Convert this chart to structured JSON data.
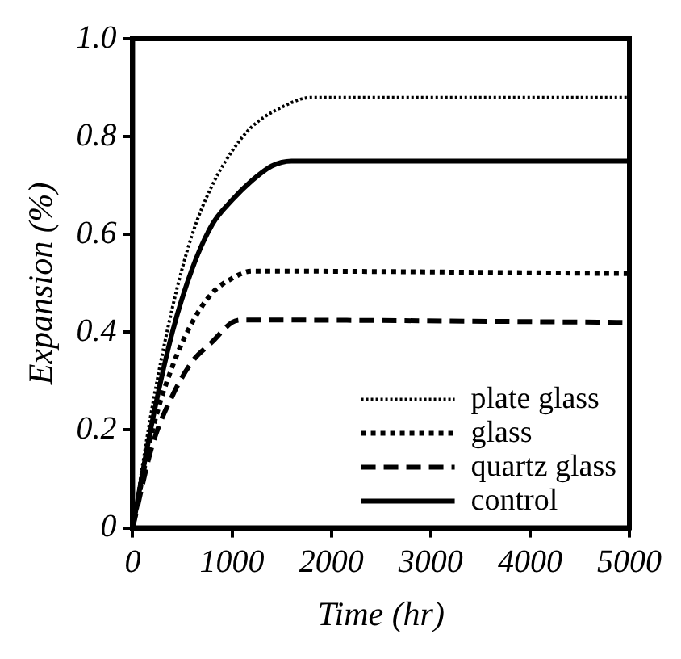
{
  "chart_data": {
    "type": "line",
    "xlabel": "Time (hr)",
    "ylabel": "Expansion (%)",
    "xlim": [
      0,
      5000
    ],
    "xticks": [
      0,
      1000,
      2000,
      3000,
      4000,
      5000
    ],
    "ylim": [
      0,
      1.0
    ],
    "yticks": [
      0,
      0.2,
      0.4,
      0.6,
      0.8,
      {
        "value": 1.0,
        "label": "1.0"
      }
    ],
    "grid": false,
    "legend": "bottom right",
    "marker": "none",
    "series": [
      {
        "name": "plate glass",
        "color": "#000000",
        "line_style": "dotted",
        "x": [
          0,
          200,
          400,
          600,
          800,
          1000,
          1200,
          1500,
          1800,
          5000
        ],
        "values": [
          0,
          0.25,
          0.45,
          0.6,
          0.7,
          0.77,
          0.82,
          0.86,
          0.88,
          0.88
        ]
      },
      {
        "name": "glass",
        "color": "#000000",
        "line_style": "dotted",
        "x": [
          0,
          200,
          400,
          600,
          800,
          1000,
          1200,
          5000
        ],
        "values": [
          0,
          0.2,
          0.33,
          0.42,
          0.48,
          0.51,
          0.525,
          0.52
        ]
      },
      {
        "name": "quartz glass",
        "color": "#000000",
        "line_style": "dashed",
        "x": [
          0,
          200,
          400,
          600,
          800,
          1000,
          1100,
          5000
        ],
        "values": [
          0,
          0.17,
          0.27,
          0.34,
          0.38,
          0.42,
          0.425,
          0.42
        ]
      },
      {
        "name": "control",
        "color": "#000000",
        "line_style": "solid",
        "x": [
          0,
          200,
          400,
          600,
          800,
          1000,
          1200,
          1400,
          1600,
          5000
        ],
        "values": [
          0,
          0.22,
          0.4,
          0.53,
          0.62,
          0.67,
          0.71,
          0.74,
          0.75,
          0.75
        ]
      }
    ]
  }
}
